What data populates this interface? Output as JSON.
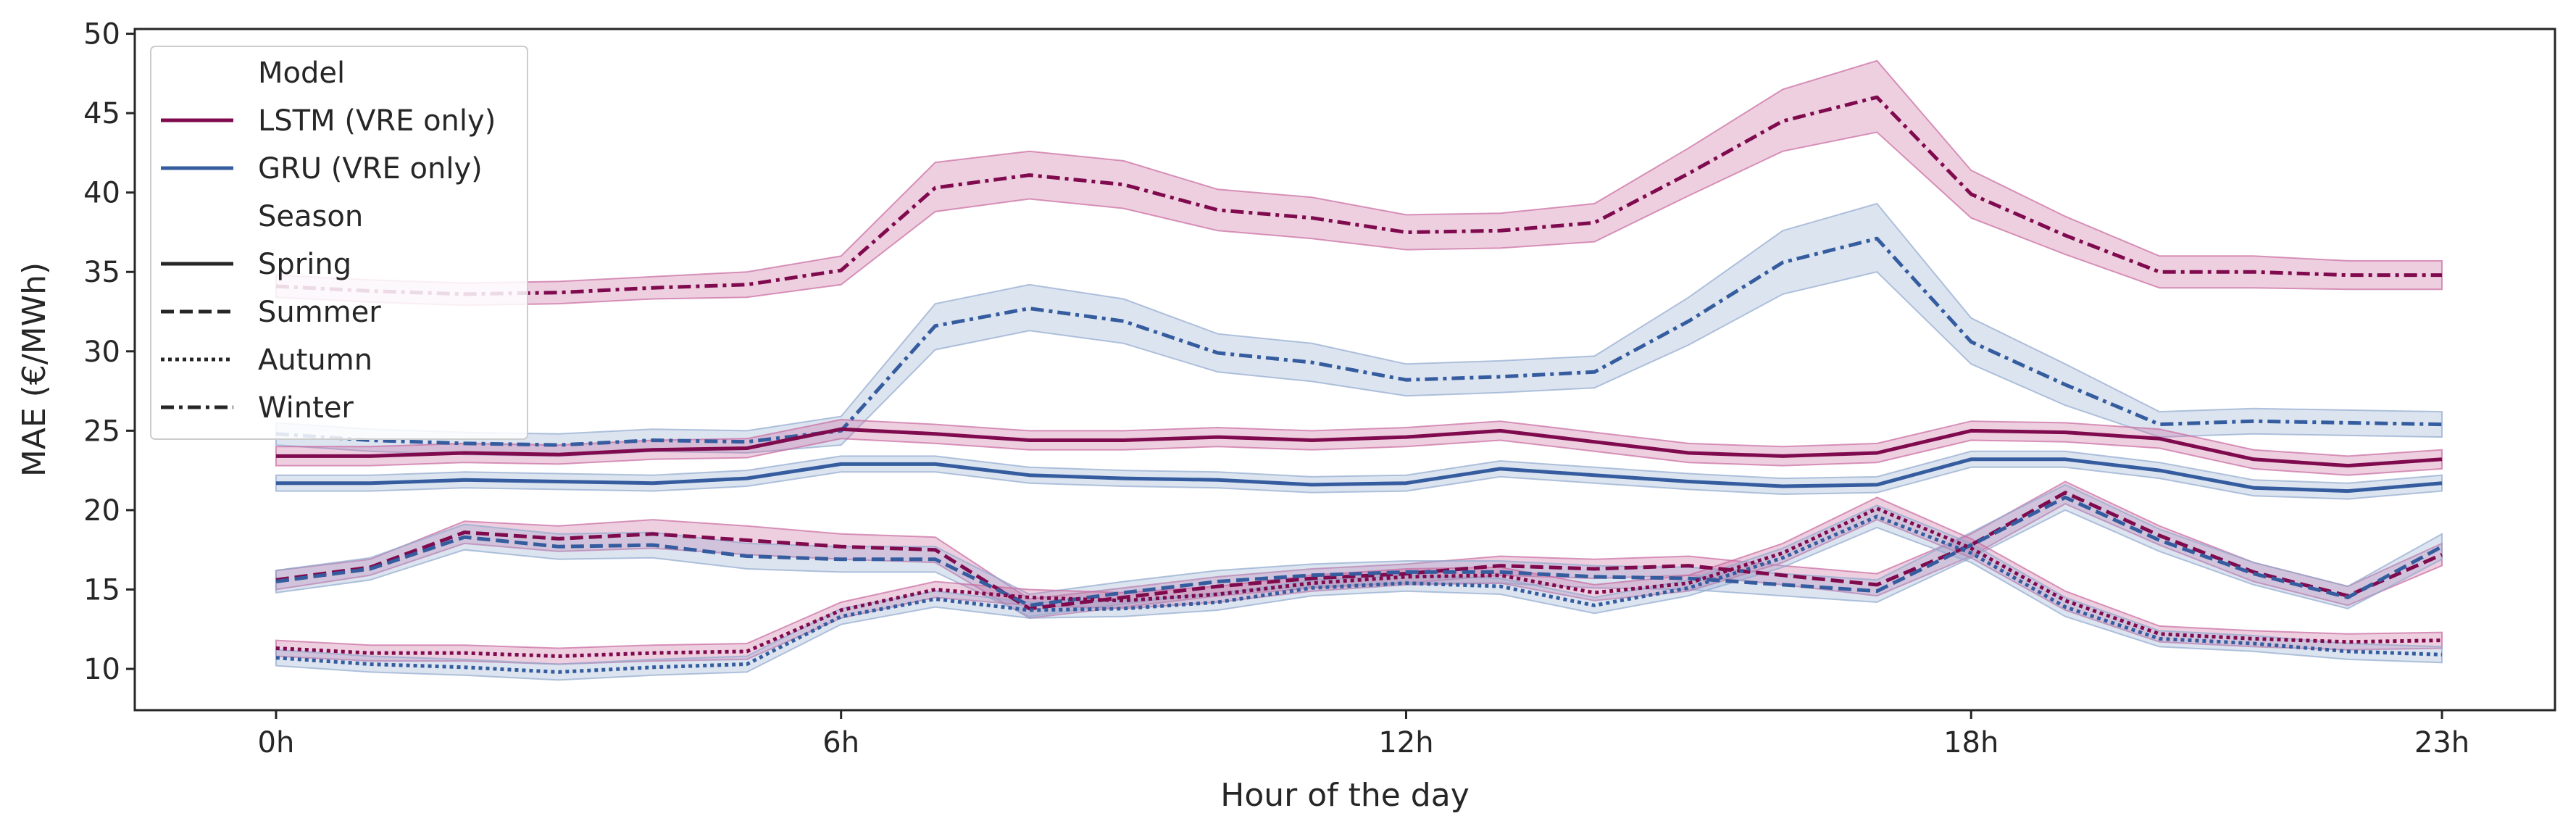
{
  "chart_data": {
    "type": "line",
    "xlabel": "Hour of the day",
    "ylabel": "MAE (€/MWh)",
    "xlim": [
      -1.5,
      24.2
    ],
    "ylim": [
      7.4,
      50.3
    ],
    "xticks": [
      0,
      6,
      12,
      18,
      23
    ],
    "xtick_labels": [
      "0h",
      "6h",
      "12h",
      "18h",
      "23h"
    ],
    "yticks": [
      10,
      15,
      20,
      25,
      30,
      35,
      40,
      45,
      50
    ],
    "ytick_labels": [
      "10",
      "15",
      "20",
      "25",
      "30",
      "35",
      "40",
      "45",
      "50"
    ],
    "grid": false,
    "legend_position": "top-left",
    "legend": {
      "model_title": "Model",
      "season_title": "Season",
      "models": [
        {
          "name": "LSTM (VRE only)",
          "color": "#7f0a4e"
        },
        {
          "name": "GRU (VRE only)",
          "color": "#355c9e"
        }
      ],
      "seasons": [
        {
          "name": "Spring",
          "dash": "solid"
        },
        {
          "name": "Summer",
          "dash": "dashed"
        },
        {
          "name": "Autumn",
          "dash": "dotted"
        },
        {
          "name": "Winter",
          "dash": "dashdot"
        }
      ]
    },
    "colors": {
      "LSTM": "#7f0a4e",
      "GRU": "#355c9e",
      "LSTM_band": "#c96aa0",
      "GRU_band": "#92aacf"
    },
    "x": [
      0,
      1,
      2,
      3,
      4,
      5,
      6,
      7,
      8,
      9,
      10,
      11,
      12,
      13,
      14,
      15,
      16,
      17,
      18,
      19,
      20,
      21,
      22,
      23
    ],
    "series": [
      {
        "model": "LSTM",
        "season": "Winter",
        "values": [
          34.1,
          33.8,
          33.6,
          33.7,
          34.0,
          34.2,
          35.1,
          40.3,
          41.1,
          40.5,
          38.9,
          38.4,
          37.5,
          37.6,
          38.1,
          41.2,
          44.5,
          46.0,
          39.9,
          37.3,
          35.0,
          35.0,
          34.8,
          34.8
        ],
        "lower": [
          33.4,
          33.1,
          32.9,
          33.0,
          33.3,
          33.4,
          34.2,
          38.8,
          39.6,
          39.0,
          37.6,
          37.1,
          36.4,
          36.5,
          36.9,
          39.8,
          42.6,
          43.8,
          38.4,
          36.1,
          34.0,
          34.0,
          33.9,
          33.9
        ],
        "upper": [
          34.8,
          34.5,
          34.3,
          34.4,
          34.7,
          35.0,
          36.0,
          41.9,
          42.6,
          42.0,
          40.2,
          39.7,
          38.6,
          38.7,
          39.3,
          42.8,
          46.5,
          48.3,
          41.4,
          38.5,
          36.0,
          36.0,
          35.7,
          35.7
        ]
      },
      {
        "model": "GRU",
        "season": "Winter",
        "values": [
          24.8,
          24.4,
          24.2,
          24.1,
          24.4,
          24.3,
          25.0,
          31.6,
          32.7,
          31.9,
          29.9,
          29.3,
          28.2,
          28.4,
          28.7,
          31.9,
          35.6,
          37.1,
          30.6,
          27.9,
          25.4,
          25.6,
          25.5,
          25.4
        ],
        "lower": [
          24.1,
          23.7,
          23.5,
          23.4,
          23.7,
          23.6,
          24.1,
          30.1,
          31.3,
          30.5,
          28.7,
          28.1,
          27.2,
          27.4,
          27.7,
          30.4,
          33.6,
          35.0,
          29.2,
          26.6,
          24.6,
          24.8,
          24.7,
          24.6
        ],
        "upper": [
          25.5,
          25.1,
          24.9,
          24.8,
          25.1,
          25.0,
          25.9,
          33.0,
          34.2,
          33.3,
          31.1,
          30.5,
          29.2,
          29.4,
          29.7,
          33.4,
          37.6,
          39.3,
          32.1,
          29.2,
          26.2,
          26.4,
          26.3,
          26.2
        ]
      },
      {
        "model": "LSTM",
        "season": "Spring",
        "values": [
          23.4,
          23.4,
          23.6,
          23.5,
          23.8,
          23.9,
          25.1,
          24.8,
          24.4,
          24.4,
          24.6,
          24.4,
          24.6,
          25.0,
          24.3,
          23.6,
          23.4,
          23.6,
          25.0,
          24.9,
          24.5,
          23.2,
          22.8,
          23.2
        ],
        "lower": [
          22.8,
          22.8,
          23.0,
          22.9,
          23.2,
          23.3,
          24.5,
          24.2,
          23.8,
          23.8,
          24.0,
          23.8,
          24.0,
          24.4,
          23.7,
          23.0,
          22.8,
          23.0,
          24.4,
          24.3,
          23.9,
          22.6,
          22.2,
          22.6
        ],
        "upper": [
          24.0,
          24.0,
          24.2,
          24.1,
          24.4,
          24.5,
          25.7,
          25.4,
          25.0,
          25.0,
          25.2,
          25.0,
          25.2,
          25.6,
          24.9,
          24.2,
          24.0,
          24.2,
          25.6,
          25.5,
          25.1,
          23.8,
          23.4,
          23.8
        ]
      },
      {
        "model": "GRU",
        "season": "Spring",
        "values": [
          21.7,
          21.7,
          21.9,
          21.8,
          21.7,
          22.0,
          22.9,
          22.9,
          22.2,
          22.0,
          21.9,
          21.6,
          21.7,
          22.6,
          22.2,
          21.8,
          21.5,
          21.6,
          23.2,
          23.2,
          22.5,
          21.4,
          21.2,
          21.7
        ],
        "lower": [
          21.2,
          21.2,
          21.4,
          21.3,
          21.2,
          21.5,
          22.4,
          22.4,
          21.7,
          21.5,
          21.4,
          21.1,
          21.2,
          22.1,
          21.7,
          21.3,
          21.0,
          21.1,
          22.7,
          22.7,
          22.0,
          20.9,
          20.7,
          21.2
        ],
        "upper": [
          22.2,
          22.2,
          22.4,
          22.3,
          22.2,
          22.5,
          23.4,
          23.4,
          22.7,
          22.5,
          22.4,
          22.1,
          22.2,
          23.1,
          22.7,
          22.3,
          22.0,
          22.1,
          23.7,
          23.7,
          23.0,
          21.9,
          21.7,
          22.2
        ]
      },
      {
        "model": "LSTM",
        "season": "Summer",
        "values": [
          15.6,
          16.4,
          18.6,
          18.2,
          18.5,
          18.1,
          17.7,
          17.5,
          13.8,
          14.5,
          15.2,
          15.7,
          16.0,
          16.5,
          16.3,
          16.5,
          15.9,
          15.3,
          17.8,
          21.1,
          18.4,
          16.1,
          14.6,
          17.2
        ],
        "lower": [
          15.0,
          15.9,
          17.9,
          17.4,
          17.6,
          17.2,
          16.9,
          16.7,
          13.2,
          13.9,
          14.6,
          15.1,
          15.4,
          15.9,
          15.7,
          15.9,
          15.3,
          14.6,
          17.1,
          20.4,
          17.8,
          15.5,
          14.0,
          16.5
        ],
        "upper": [
          16.2,
          16.9,
          19.3,
          19.0,
          19.4,
          19.0,
          18.5,
          18.3,
          14.4,
          15.1,
          15.8,
          16.3,
          16.6,
          17.1,
          16.9,
          17.1,
          16.5,
          16.0,
          18.5,
          21.8,
          19.0,
          16.7,
          15.2,
          17.9
        ]
      },
      {
        "model": "GRU",
        "season": "Summer",
        "values": [
          15.5,
          16.3,
          18.3,
          17.7,
          17.8,
          17.1,
          16.9,
          16.9,
          14.0,
          14.8,
          15.5,
          15.9,
          16.1,
          16.1,
          15.8,
          15.7,
          15.3,
          14.9,
          17.8,
          20.8,
          18.1,
          16.0,
          14.5,
          17.7
        ],
        "lower": [
          14.8,
          15.6,
          17.5,
          16.9,
          17.0,
          16.3,
          16.1,
          16.1,
          13.3,
          14.1,
          14.8,
          15.2,
          15.4,
          15.4,
          15.1,
          15.0,
          14.6,
          14.2,
          17.0,
          20.0,
          17.4,
          15.3,
          13.8,
          16.9
        ],
        "upper": [
          16.2,
          17.0,
          19.1,
          18.5,
          18.6,
          17.9,
          17.7,
          17.7,
          14.7,
          15.5,
          16.2,
          16.6,
          16.8,
          16.8,
          16.5,
          16.4,
          16.0,
          15.6,
          18.6,
          21.6,
          18.8,
          16.7,
          15.2,
          18.5
        ]
      },
      {
        "model": "LSTM",
        "season": "Autumn",
        "values": [
          11.3,
          11.0,
          11.0,
          10.8,
          11.0,
          11.1,
          13.7,
          15.0,
          14.5,
          14.3,
          14.7,
          15.4,
          15.8,
          15.9,
          14.8,
          15.4,
          17.3,
          20.1,
          17.6,
          14.3,
          12.2,
          11.9,
          11.7,
          11.8
        ],
        "lower": [
          10.8,
          10.5,
          10.5,
          10.3,
          10.5,
          10.6,
          13.2,
          14.5,
          14.0,
          13.8,
          14.2,
          14.9,
          15.3,
          15.4,
          14.3,
          14.9,
          16.7,
          19.4,
          17.0,
          13.7,
          11.7,
          11.4,
          11.2,
          11.3
        ],
        "upper": [
          11.8,
          11.5,
          11.5,
          11.3,
          11.5,
          11.6,
          14.2,
          15.5,
          15.0,
          14.8,
          15.2,
          15.9,
          16.3,
          16.4,
          15.3,
          15.9,
          17.9,
          20.8,
          18.2,
          14.9,
          12.7,
          12.4,
          12.2,
          12.3
        ]
      },
      {
        "model": "GRU",
        "season": "Autumn",
        "values": [
          10.7,
          10.3,
          10.1,
          9.8,
          10.1,
          10.3,
          13.3,
          14.4,
          13.7,
          13.8,
          14.2,
          15.1,
          15.4,
          15.2,
          14.0,
          15.1,
          17.0,
          19.6,
          17.3,
          13.9,
          11.9,
          11.6,
          11.1,
          10.9
        ],
        "lower": [
          10.2,
          9.8,
          9.6,
          9.3,
          9.6,
          9.8,
          12.8,
          13.9,
          13.2,
          13.3,
          13.7,
          14.6,
          14.9,
          14.7,
          13.5,
          14.6,
          16.4,
          18.9,
          16.7,
          13.3,
          11.4,
          11.1,
          10.6,
          10.4
        ],
        "upper": [
          11.2,
          10.8,
          10.6,
          10.3,
          10.6,
          10.8,
          13.8,
          14.9,
          14.2,
          14.3,
          14.7,
          15.6,
          15.9,
          15.7,
          14.5,
          15.6,
          17.6,
          20.3,
          17.9,
          14.5,
          12.4,
          12.1,
          11.6,
          11.4
        ]
      }
    ]
  }
}
